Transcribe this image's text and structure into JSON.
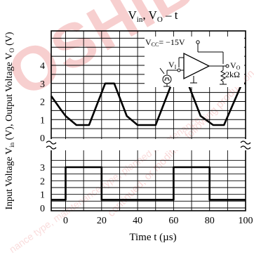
{
  "watermark": {
    "logo_text": "OSHIBA",
    "diag_text": "continued, or modified, following production",
    "lower_text": "nance type, maintenance type, planned maintenance"
  },
  "chart_data": {
    "type": "line",
    "title_parts": [
      "V",
      "in",
      ", V",
      "O",
      " – t"
    ],
    "xlabel": "Time  t (µs)",
    "ylabel_top_parts": [
      "Output Voltage  V",
      "O",
      " (V)"
    ],
    "ylabel_bottom_parts": [
      "Input Voltage  V",
      "in",
      " (V),"
    ],
    "xlim": [
      -8,
      100
    ],
    "x_ticks": [
      0,
      20,
      40,
      60,
      80,
      100
    ],
    "top_ylim": [
      0,
      4
    ],
    "top_y_ticks": [
      0,
      1,
      2,
      3,
      4
    ],
    "bottom_ylim": [
      0,
      3
    ],
    "bottom_y_ticks": [
      0,
      1,
      2,
      3
    ],
    "grid": true,
    "series": [
      {
        "panel": "output",
        "x": [
          -8,
          -3,
          0,
          6,
          13,
          22,
          27,
          34,
          40,
          50,
          59,
          68,
          75,
          82,
          88,
          98,
          100
        ],
        "y": [
          2.3,
          1.6,
          1.2,
          0.7,
          0.7,
          3.0,
          3.0,
          1.2,
          0.7,
          0.7,
          3.0,
          3.0,
          1.2,
          0.7,
          0.7,
          3.0,
          3.0
        ]
      },
      {
        "panel": "input",
        "x": [
          -8,
          0,
          0,
          20,
          20,
          40,
          40,
          60,
          60,
          80,
          80,
          100
        ],
        "y": [
          0.6,
          0.6,
          3.0,
          3.0,
          0.6,
          0.6,
          0.6,
          0.6,
          3.0,
          3.0,
          0.6,
          0.6
        ]
      }
    ],
    "circuit": {
      "vcc_label": "V",
      "vcc_sub": "CC",
      "vcc_value": "= −15V",
      "vi_label": "V",
      "vi_sub": "I",
      "vo_label": "V",
      "vo_sub": "O",
      "load_label": "2kΩ"
    }
  }
}
